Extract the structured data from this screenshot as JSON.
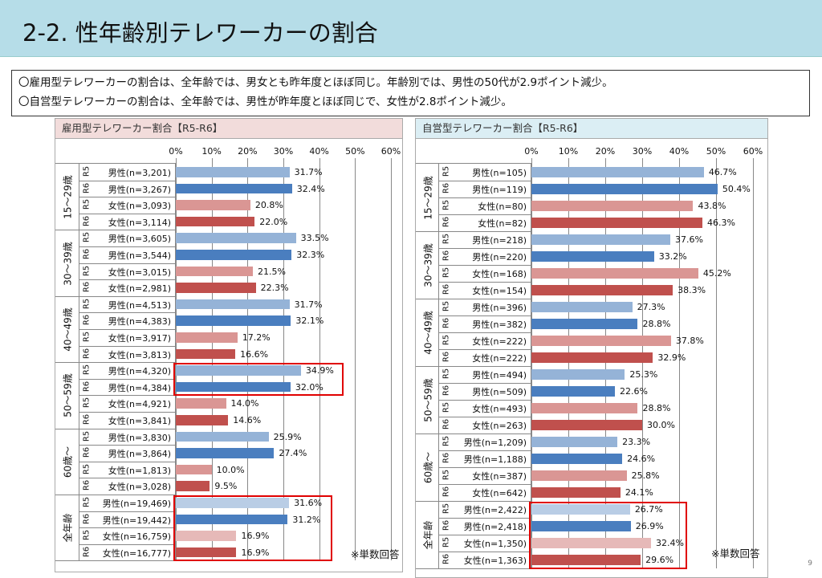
{
  "title": "2-2. 性年齢別テレワーカーの割合",
  "summary": [
    "〇雇用型テレワーカーの割合は、全年齢では、男女とも昨年度とほぼ同じ。年齢別では、男性の50代が2.9ポイント減少。",
    "〇自営型テレワーカーの割合は、全年齢では、男性が昨年度とほぼ同じで、女性が2.8ポイント減少。"
  ],
  "page_number": "9",
  "colors": {
    "male_r5": "#95b3d7",
    "male_r6": "#4a7ebf",
    "female_r5": "#da9694",
    "female_r6": "#c0504d",
    "male_r5_total": "#b9cde5",
    "female_r5_total": "#e6b9b8",
    "highlight": "#e00000"
  },
  "chart_data": [
    {
      "type": "bar",
      "orientation": "horizontal",
      "title": "雇用型テレワーカー割合【R5-R6】",
      "xlim": [
        0,
        60
      ],
      "ticks": [
        "0%",
        "10%",
        "20%",
        "30%",
        "40%",
        "50%",
        "60%"
      ],
      "note": "※単数回答",
      "groups": [
        {
          "name": "15～29歳",
          "rows": [
            {
              "year": "R5",
              "label": "男性(n=3,201)",
              "value": 31.7
            },
            {
              "year": "R6",
              "label": "男性(n=3,267)",
              "value": 32.4
            },
            {
              "year": "R5",
              "label": "女性(n=3,093)",
              "value": 20.8
            },
            {
              "year": "R6",
              "label": "女性(n=3,114)",
              "value": 22.0
            }
          ]
        },
        {
          "name": "30～39歳",
          "rows": [
            {
              "year": "R5",
              "label": "男性(n=3,605)",
              "value": 33.5
            },
            {
              "year": "R6",
              "label": "男性(n=3,544)",
              "value": 32.3
            },
            {
              "year": "R5",
              "label": "女性(n=3,015)",
              "value": 21.5
            },
            {
              "year": "R6",
              "label": "女性(n=2,981)",
              "value": 22.3
            }
          ]
        },
        {
          "name": "40～49歳",
          "rows": [
            {
              "year": "R5",
              "label": "男性(n=4,513)",
              "value": 31.7
            },
            {
              "year": "R6",
              "label": "男性(n=4,383)",
              "value": 32.1
            },
            {
              "year": "R5",
              "label": "女性(n=3,917)",
              "value": 17.2
            },
            {
              "year": "R6",
              "label": "女性(n=3,813)",
              "value": 16.6
            }
          ]
        },
        {
          "name": "50～59歳",
          "rows": [
            {
              "year": "R5",
              "label": "男性(n=4,320)",
              "value": 34.9
            },
            {
              "year": "R6",
              "label": "男性(n=4,384)",
              "value": 32.0
            },
            {
              "year": "R5",
              "label": "女性(n=4,921)",
              "value": 14.0
            },
            {
              "year": "R6",
              "label": "女性(n=3,841)",
              "value": 14.6
            }
          ]
        },
        {
          "name": "60歳～",
          "rows": [
            {
              "year": "R5",
              "label": "男性(n=3,830)",
              "value": 25.9
            },
            {
              "year": "R6",
              "label": "男性(n=3,864)",
              "value": 27.4
            },
            {
              "year": "R5",
              "label": "女性(n=1,813)",
              "value": 10.0
            },
            {
              "year": "R6",
              "label": "女性(n=3,028)",
              "value": 9.5
            }
          ]
        },
        {
          "name": "全年齢",
          "rows": [
            {
              "year": "R5",
              "label": "男性(n=19,469)",
              "value": 31.6
            },
            {
              "year": "R6",
              "label": "男性(n=19,442)",
              "value": 31.2
            },
            {
              "year": "R5",
              "label": "女性(n=16,759)",
              "value": 16.9
            },
            {
              "year": "R6",
              "label": "女性(n=16,777)",
              "value": 16.9
            }
          ]
        }
      ],
      "highlights": [
        {
          "rows": [
            12,
            13
          ]
        },
        {
          "rows": [
            20,
            23
          ]
        }
      ]
    },
    {
      "type": "bar",
      "orientation": "horizontal",
      "title": "自営型テレワーカー割合【R5-R6】",
      "xlim": [
        0,
        60
      ],
      "ticks": [
        "0%",
        "10%",
        "20%",
        "30%",
        "40%",
        "50%",
        "60%"
      ],
      "note": "※単数回答",
      "groups": [
        {
          "name": "15～29歳",
          "rows": [
            {
              "year": "R5",
              "label": "男性(n=105)",
              "value": 46.7
            },
            {
              "year": "R6",
              "label": "男性(n=119)",
              "value": 50.4
            },
            {
              "year": "R5",
              "label": "女性(n=80)",
              "value": 43.8
            },
            {
              "year": "R6",
              "label": "女性(n=82)",
              "value": 46.3
            }
          ]
        },
        {
          "name": "30～39歳",
          "rows": [
            {
              "year": "R5",
              "label": "男性(n=218)",
              "value": 37.6
            },
            {
              "year": "R6",
              "label": "男性(n=220)",
              "value": 33.2
            },
            {
              "year": "R5",
              "label": "女性(n=168)",
              "value": 45.2
            },
            {
              "year": "R6",
              "label": "女性(n=154)",
              "value": 38.3
            }
          ]
        },
        {
          "name": "40～49歳",
          "rows": [
            {
              "year": "R5",
              "label": "男性(n=396)",
              "value": 27.3
            },
            {
              "year": "R6",
              "label": "男性(n=382)",
              "value": 28.8
            },
            {
              "year": "R5",
              "label": "女性(n=222)",
              "value": 37.8
            },
            {
              "year": "R6",
              "label": "女性(n=222)",
              "value": 32.9
            }
          ]
        },
        {
          "name": "50～59歳",
          "rows": [
            {
              "year": "R5",
              "label": "男性(n=494)",
              "value": 25.3
            },
            {
              "year": "R6",
              "label": "男性(n=509)",
              "value": 22.6
            },
            {
              "year": "R5",
              "label": "女性(n=493)",
              "value": 28.8
            },
            {
              "year": "R6",
              "label": "女性(n=263)",
              "value": 30.0
            }
          ]
        },
        {
          "name": "60歳～",
          "rows": [
            {
              "year": "R5",
              "label": "男性(n=1,209)",
              "value": 23.3
            },
            {
              "year": "R6",
              "label": "男性(n=1,188)",
              "value": 24.6
            },
            {
              "year": "R5",
              "label": "女性(n=387)",
              "value": 25.8
            },
            {
              "year": "R6",
              "label": "女性(n=642)",
              "value": 24.1
            }
          ]
        },
        {
          "name": "全年齢",
          "rows": [
            {
              "year": "R5",
              "label": "男性(n=2,422)",
              "value": 26.7
            },
            {
              "year": "R6",
              "label": "男性(n=2,418)",
              "value": 26.9
            },
            {
              "year": "R5",
              "label": "女性(n=1,350)",
              "value": 32.4
            },
            {
              "year": "R6",
              "label": "女性(n=1,363)",
              "value": 29.6
            }
          ]
        }
      ],
      "highlights": [
        {
          "rows": [
            20,
            23
          ]
        }
      ]
    }
  ]
}
